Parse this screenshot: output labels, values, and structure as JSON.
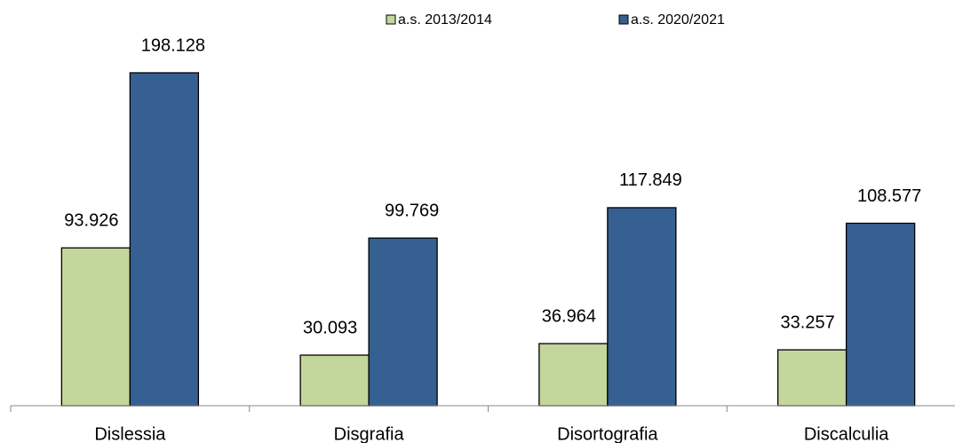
{
  "chart_data": {
    "type": "bar",
    "categories": [
      "Dislessia",
      "Disgrafia",
      "Disortografia",
      "Discalculia"
    ],
    "series": [
      {
        "name": "a.s. 2013/2014",
        "color": "#c3d69b",
        "values": [
          93926,
          30093,
          36964,
          33257
        ],
        "value_labels": [
          "93.926",
          "30.093",
          "36.964",
          "33.257"
        ]
      },
      {
        "name": "a.s. 2020/2021",
        "color": "#376092",
        "values": [
          198128,
          99769,
          117849,
          108577
        ],
        "value_labels": [
          "198.128",
          "99.769",
          "117.849",
          "108.577"
        ]
      }
    ]
  }
}
